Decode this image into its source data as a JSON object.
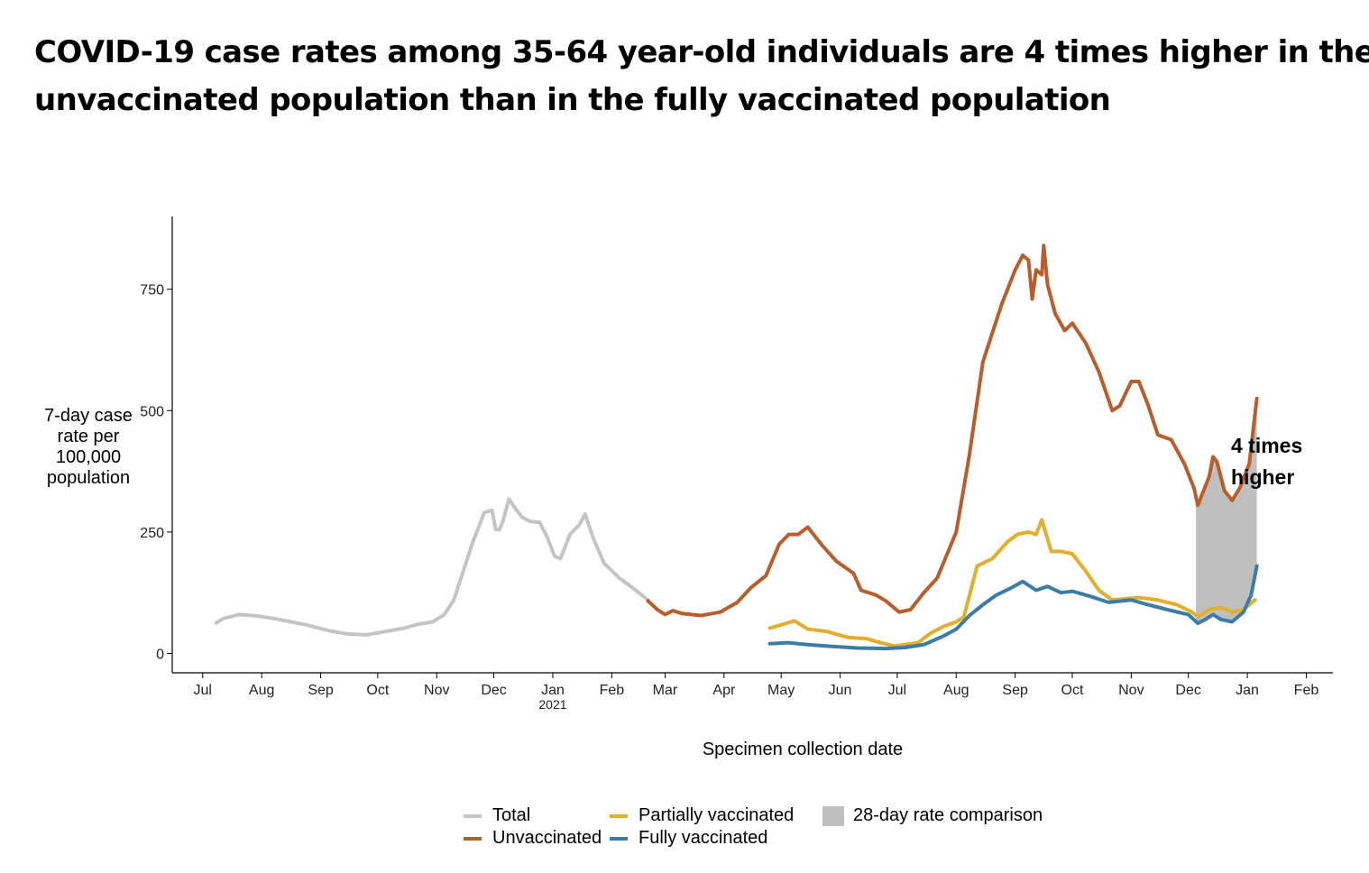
{
  "header": {
    "title_line1": "COVID-19 case rates among 35-64 year-old individuals are 4 times higher in the",
    "title_line2": "unvaccinated population than in the fully vaccinated population"
  },
  "chart_data": {
    "type": "line",
    "title": "COVID-19 case rates among 35-64 year-old individuals are 4 times higher in the unvaccinated population than in the fully vaccinated population",
    "xlabel": "Specimen collection date",
    "ylabel_lines": [
      "7-day case",
      "rate per",
      "100,000",
      "population"
    ],
    "xlim": [
      "2020-06-15",
      "2022-02-15"
    ],
    "ylim": [
      -40,
      900
    ],
    "y_ticks": [
      0,
      250,
      500,
      750
    ],
    "y_tick_labels": [
      "0",
      "250",
      "500",
      "750"
    ],
    "x_ticks": [
      {
        "date": "2020-07-01",
        "label": "Jul"
      },
      {
        "date": "2020-08-01",
        "label": "Aug"
      },
      {
        "date": "2020-09-01",
        "label": "Sep"
      },
      {
        "date": "2020-10-01",
        "label": "Oct"
      },
      {
        "date": "2020-11-01",
        "label": "Nov"
      },
      {
        "date": "2020-12-01",
        "label": "Dec"
      },
      {
        "date": "2021-01-01",
        "label": "Jan",
        "sublabel": "2021"
      },
      {
        "date": "2021-02-01",
        "label": "Feb"
      },
      {
        "date": "2021-03-01",
        "label": "Mar"
      },
      {
        "date": "2021-04-01",
        "label": "Apr"
      },
      {
        "date": "2021-05-01",
        "label": "May"
      },
      {
        "date": "2021-06-01",
        "label": "Jun"
      },
      {
        "date": "2021-07-01",
        "label": "Jul"
      },
      {
        "date": "2021-08-01",
        "label": "Aug"
      },
      {
        "date": "2021-09-01",
        "label": "Sep"
      },
      {
        "date": "2021-10-01",
        "label": "Oct"
      },
      {
        "date": "2021-11-01",
        "label": "Nov"
      },
      {
        "date": "2021-12-01",
        "label": "Dec"
      },
      {
        "date": "2022-01-01",
        "label": "Jan"
      },
      {
        "date": "2022-02-01",
        "label": "Feb"
      }
    ],
    "grid": false,
    "legend_position": "bottom",
    "series": [
      {
        "name": "Total",
        "color": "#c4c4c4",
        "points": [
          [
            "2020-07-08",
            63
          ],
          [
            "2020-07-12",
            72
          ],
          [
            "2020-07-20",
            80
          ],
          [
            "2020-07-30",
            77
          ],
          [
            "2020-08-10",
            70
          ],
          [
            "2020-08-25",
            58
          ],
          [
            "2020-09-05",
            47
          ],
          [
            "2020-09-15",
            40
          ],
          [
            "2020-09-25",
            38
          ],
          [
            "2020-10-05",
            45
          ],
          [
            "2020-10-15",
            52
          ],
          [
            "2020-10-22",
            60
          ],
          [
            "2020-10-30",
            65
          ],
          [
            "2020-11-05",
            80
          ],
          [
            "2020-11-10",
            110
          ],
          [
            "2020-11-15",
            170
          ],
          [
            "2020-11-20",
            230
          ],
          [
            "2020-11-26",
            290
          ],
          [
            "2020-11-30",
            295
          ],
          [
            "2020-12-02",
            255
          ],
          [
            "2020-12-04",
            255
          ],
          [
            "2020-12-06",
            275
          ],
          [
            "2020-12-09",
            318
          ],
          [
            "2020-12-12",
            300
          ],
          [
            "2020-12-16",
            280
          ],
          [
            "2020-12-20",
            272
          ],
          [
            "2020-12-25",
            270
          ],
          [
            "2020-12-29",
            240
          ],
          [
            "2021-01-02",
            200
          ],
          [
            "2021-01-05",
            195
          ],
          [
            "2021-01-10",
            245
          ],
          [
            "2021-01-15",
            265
          ],
          [
            "2021-01-18",
            287
          ],
          [
            "2021-01-22",
            240
          ],
          [
            "2021-01-28",
            185
          ],
          [
            "2021-02-05",
            155
          ],
          [
            "2021-02-12",
            135
          ],
          [
            "2021-02-20",
            110
          ]
        ]
      },
      {
        "name": "Unvaccinated",
        "color": "#bb5d2a",
        "points": [
          [
            "2021-02-20",
            108
          ],
          [
            "2021-02-25",
            90
          ],
          [
            "2021-03-01",
            80
          ],
          [
            "2021-03-05",
            88
          ],
          [
            "2021-03-10",
            82
          ],
          [
            "2021-03-20",
            78
          ],
          [
            "2021-03-30",
            85
          ],
          [
            "2021-04-08",
            105
          ],
          [
            "2021-04-15",
            135
          ],
          [
            "2021-04-23",
            160
          ],
          [
            "2021-04-30",
            225
          ],
          [
            "2021-05-05",
            245
          ],
          [
            "2021-05-10",
            245
          ],
          [
            "2021-05-15",
            260
          ],
          [
            "2021-05-22",
            225
          ],
          [
            "2021-05-30",
            190
          ],
          [
            "2021-06-08",
            165
          ],
          [
            "2021-06-12",
            130
          ],
          [
            "2021-06-20",
            120
          ],
          [
            "2021-06-25",
            108
          ],
          [
            "2021-07-02",
            85
          ],
          [
            "2021-07-08",
            90
          ],
          [
            "2021-07-15",
            125
          ],
          [
            "2021-07-22",
            155
          ],
          [
            "2021-08-01",
            250
          ],
          [
            "2021-08-08",
            410
          ],
          [
            "2021-08-15",
            600
          ],
          [
            "2021-08-25",
            720
          ],
          [
            "2021-09-01",
            790
          ],
          [
            "2021-09-05",
            820
          ],
          [
            "2021-09-08",
            810
          ],
          [
            "2021-09-10",
            730
          ],
          [
            "2021-09-12",
            790
          ],
          [
            "2021-09-15",
            780
          ],
          [
            "2021-09-16",
            840
          ],
          [
            "2021-09-18",
            760
          ],
          [
            "2021-09-22",
            700
          ],
          [
            "2021-09-27",
            665
          ],
          [
            "2021-10-01",
            680
          ],
          [
            "2021-10-08",
            640
          ],
          [
            "2021-10-15",
            580
          ],
          [
            "2021-10-22",
            500
          ],
          [
            "2021-10-26",
            510
          ],
          [
            "2021-11-01",
            560
          ],
          [
            "2021-11-05",
            560
          ],
          [
            "2021-11-10",
            510
          ],
          [
            "2021-11-15",
            450
          ],
          [
            "2021-11-22",
            440
          ],
          [
            "2021-11-29",
            390
          ],
          [
            "2021-12-04",
            340
          ],
          [
            "2021-12-06",
            305
          ],
          [
            "2021-12-12",
            365
          ],
          [
            "2021-12-14",
            405
          ],
          [
            "2021-12-16",
            395
          ],
          [
            "2021-12-20",
            335
          ],
          [
            "2021-12-24",
            315
          ],
          [
            "2021-12-28",
            340
          ],
          [
            "2022-01-02",
            390
          ],
          [
            "2022-01-06",
            525
          ]
        ]
      },
      {
        "name": "Partially vaccinated",
        "color": "#e4ae2b",
        "points": [
          [
            "2021-04-25",
            52
          ],
          [
            "2021-05-02",
            60
          ],
          [
            "2021-05-08",
            67
          ],
          [
            "2021-05-15",
            50
          ],
          [
            "2021-05-25",
            45
          ],
          [
            "2021-06-05",
            33
          ],
          [
            "2021-06-15",
            30
          ],
          [
            "2021-06-22",
            22
          ],
          [
            "2021-06-30",
            15
          ],
          [
            "2021-07-05",
            18
          ],
          [
            "2021-07-12",
            22
          ],
          [
            "2021-07-18",
            40
          ],
          [
            "2021-07-25",
            55
          ],
          [
            "2021-08-01",
            65
          ],
          [
            "2021-08-05",
            75
          ],
          [
            "2021-08-08",
            120
          ],
          [
            "2021-08-12",
            180
          ],
          [
            "2021-08-20",
            195
          ],
          [
            "2021-08-28",
            230
          ],
          [
            "2021-09-02",
            245
          ],
          [
            "2021-09-08",
            250
          ],
          [
            "2021-09-12",
            245
          ],
          [
            "2021-09-15",
            275
          ],
          [
            "2021-09-20",
            210
          ],
          [
            "2021-09-25",
            210
          ],
          [
            "2021-10-01",
            205
          ],
          [
            "2021-10-08",
            170
          ],
          [
            "2021-10-15",
            130
          ],
          [
            "2021-10-22",
            110
          ],
          [
            "2021-11-05",
            115
          ],
          [
            "2021-11-15",
            110
          ],
          [
            "2021-11-25",
            100
          ],
          [
            "2021-12-03",
            85
          ],
          [
            "2021-12-06",
            75
          ],
          [
            "2021-12-12",
            90
          ],
          [
            "2021-12-18",
            95
          ],
          [
            "2021-12-24",
            85
          ],
          [
            "2021-12-30",
            90
          ],
          [
            "2022-01-05",
            110
          ]
        ]
      },
      {
        "name": "Fully vaccinated",
        "color": "#3b7ca8",
        "points": [
          [
            "2021-04-25",
            20
          ],
          [
            "2021-05-05",
            22
          ],
          [
            "2021-05-15",
            18
          ],
          [
            "2021-05-25",
            15
          ],
          [
            "2021-06-10",
            11
          ],
          [
            "2021-06-25",
            10
          ],
          [
            "2021-07-05",
            12
          ],
          [
            "2021-07-15",
            18
          ],
          [
            "2021-07-25",
            35
          ],
          [
            "2021-08-01",
            50
          ],
          [
            "2021-08-08",
            78
          ],
          [
            "2021-08-15",
            100
          ],
          [
            "2021-08-22",
            120
          ],
          [
            "2021-08-30",
            135
          ],
          [
            "2021-09-05",
            148
          ],
          [
            "2021-09-12",
            130
          ],
          [
            "2021-09-18",
            138
          ],
          [
            "2021-09-25",
            125
          ],
          [
            "2021-10-01",
            128
          ],
          [
            "2021-10-10",
            118
          ],
          [
            "2021-10-20",
            105
          ],
          [
            "2021-11-01",
            110
          ],
          [
            "2021-11-10",
            100
          ],
          [
            "2021-11-20",
            90
          ],
          [
            "2021-12-01",
            80
          ],
          [
            "2021-12-06",
            62
          ],
          [
            "2021-12-10",
            70
          ],
          [
            "2021-12-14",
            80
          ],
          [
            "2021-12-18",
            70
          ],
          [
            "2021-12-24",
            65
          ],
          [
            "2021-12-30",
            85
          ],
          [
            "2022-01-03",
            120
          ],
          [
            "2022-01-06",
            180
          ]
        ]
      }
    ],
    "comparison_band": {
      "name": "28-day rate comparison",
      "color": "#bfbfbf",
      "start": "2021-12-05",
      "end": "2022-01-06",
      "upper_series": "Unvaccinated",
      "lower_series": "Fully vaccinated"
    },
    "annotation_lines": [
      "4 times",
      "higher"
    ]
  },
  "legend": {
    "total": "Total",
    "unvaccinated": "Unvaccinated",
    "partially": "Partially vaccinated",
    "fully": "Fully vaccinated",
    "band": "28-day rate comparison",
    "colors": {
      "total": "#c4c4c4",
      "unvaccinated": "#bb5d2a",
      "partially": "#e4ae2b",
      "fully": "#3b7ca8",
      "band": "#bfbfbf"
    }
  }
}
